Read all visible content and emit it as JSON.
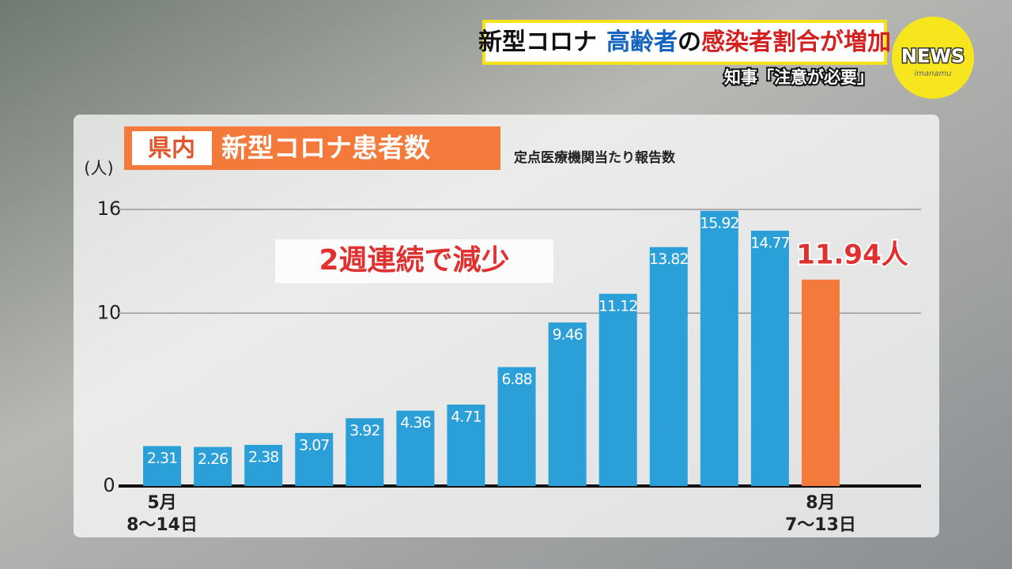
{
  "header": {
    "headline": [
      "新型コロナ",
      "高齢者",
      "の",
      "感染者割合が増加"
    ],
    "subheadline": "知事「注意が必要」",
    "logo": "NEWS",
    "logo_sub": "imanamu"
  },
  "chart_data": {
    "type": "bar",
    "title_badge": "県内",
    "title": "新型コロナ患者数",
    "subtitle": "定点医療機関当たり報告数",
    "y_label": "(人)",
    "annotation": "2週連続で減少",
    "categories": [
      "5月\n8〜14日",
      null,
      null,
      null,
      null,
      null,
      null,
      null,
      null,
      null,
      null,
      null,
      null,
      "8月\n7〜13日"
    ],
    "values": [
      2.31,
      2.26,
      2.38,
      3.07,
      3.92,
      4.36,
      4.71,
      6.88,
      9.46,
      11.12,
      13.82,
      15.92,
      14.77,
      11.94
    ],
    "value_labels": [
      "2.31",
      "2.26",
      "2.38",
      "3.07",
      "3.92",
      "4.36",
      "4.71",
      "6.88",
      "9.46",
      "11.12",
      "13.82",
      "15.92",
      "14.77",
      "11.94人"
    ],
    "colors": [
      "#2a9fd8",
      "#2a9fd8",
      "#2a9fd8",
      "#2a9fd8",
      "#2a9fd8",
      "#2a9fd8",
      "#2a9fd8",
      "#2a9fd8",
      "#2a9fd8",
      "#2a9fd8",
      "#2a9fd8",
      "#2a9fd8",
      "#2a9fd8",
      "#f47a3c"
    ],
    "ylim": [
      0,
      16
    ],
    "yticks": [
      0,
      10,
      16
    ],
    "grid": true
  }
}
